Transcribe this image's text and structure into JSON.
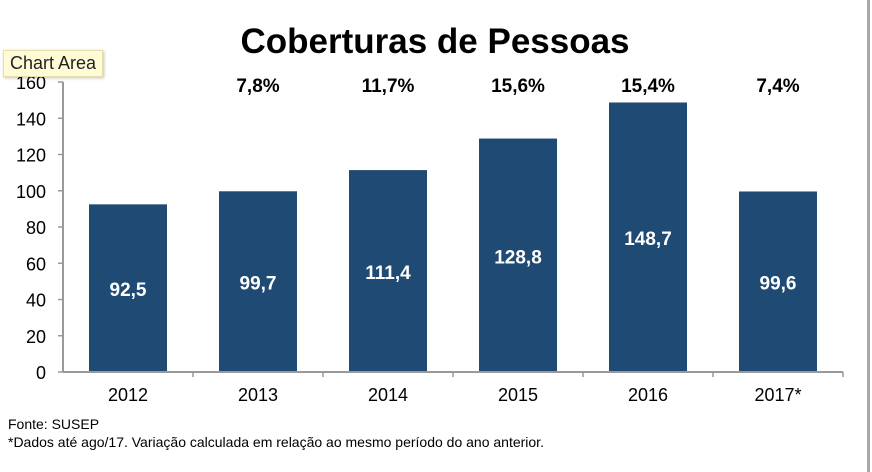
{
  "chart_data": {
    "type": "bar",
    "title": "Coberturas de Pessoas",
    "categories": [
      "2012",
      "2013",
      "2014",
      "2015",
      "2016",
      "2017*"
    ],
    "values": [
      92.5,
      99.7,
      111.4,
      128.8,
      148.7,
      99.6
    ],
    "value_labels": [
      "92,5",
      "99,7",
      "111,4",
      "128,8",
      "148,7",
      "99,6"
    ],
    "growth_labels": [
      "",
      "7,8%",
      "11,7%",
      "15,6%",
      "15,4%",
      "7,4%"
    ],
    "ylim": [
      0,
      160
    ],
    "yticks": [
      0,
      20,
      40,
      60,
      80,
      100,
      120,
      140,
      160
    ],
    "xlabel": "",
    "ylabel": "",
    "grid": false,
    "bar_color": "#1f4a73"
  },
  "footnotes": {
    "source": "Fonte: SUSEP",
    "note": "*Dados até ago/17. Variação calculada em relação ao mesmo período do ano anterior."
  },
  "tooltip": "Chart Area"
}
